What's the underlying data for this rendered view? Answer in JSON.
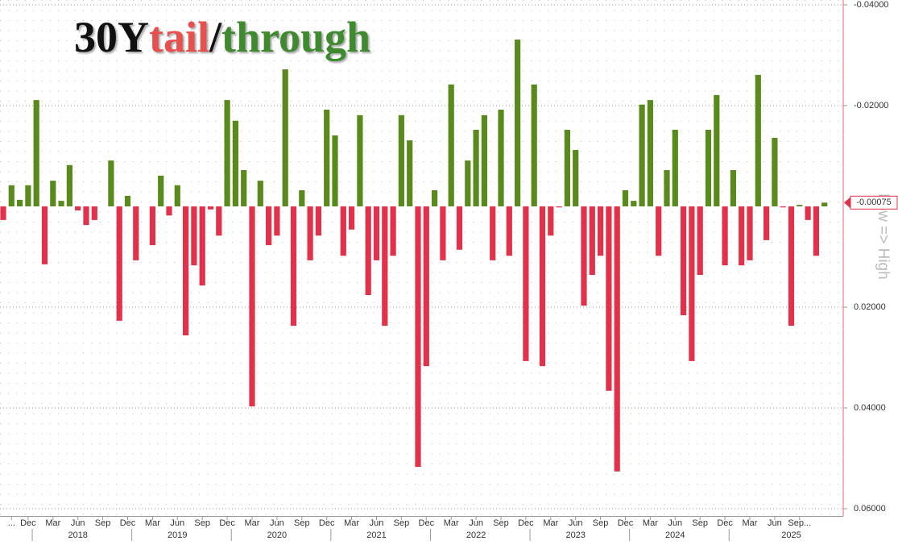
{
  "chart_data": {
    "type": "bar",
    "title_parts": [
      "30Y",
      "tail",
      "/",
      "through"
    ],
    "title_colors": [
      "#111111",
      "#e8504e",
      "#111111",
      "#3f8a2e"
    ],
    "y_label": "Low => High",
    "positive_color": "#e0324a",
    "negative_color": "#5a8a1e",
    "inverted": true,
    "grid": true,
    "ylim": [
      -0.04,
      0.06
    ],
    "yticks": [
      {
        "value": -0.04,
        "label": "-0.04000"
      },
      {
        "value": -0.02,
        "label": "-0.02000"
      },
      {
        "value": 0.02,
        "label": "0.02000"
      },
      {
        "value": 0.04,
        "label": "0.04000"
      },
      {
        "value": 0.06,
        "label": "0.06000"
      }
    ],
    "categories": [
      null,
      "...",
      null,
      "Dec",
      null,
      null,
      "Mar",
      null,
      null,
      "Jun",
      null,
      null,
      "Sep",
      null,
      null,
      "Dec",
      null,
      null,
      "Mar",
      null,
      null,
      "Jun",
      null,
      null,
      "Sep",
      null,
      null,
      "Dec",
      null,
      null,
      "Mar",
      null,
      null,
      "Jun",
      null,
      null,
      "Sep",
      null,
      null,
      "Dec",
      null,
      null,
      "Mar",
      null,
      null,
      "Jun",
      null,
      null,
      "Sep",
      null,
      null,
      "Dec",
      null,
      null,
      "Mar",
      null,
      null,
      "Jun",
      null,
      null,
      "Sep",
      null,
      null,
      "Dec",
      null,
      null,
      "Mar",
      null,
      null,
      "Jun",
      null,
      null,
      "Sep",
      null,
      null,
      "Dec",
      null,
      null,
      "Mar",
      null,
      null,
      "Jun",
      null,
      null,
      "Sep",
      null,
      null,
      "Dec",
      null,
      null,
      "Mar",
      null,
      null,
      "Jun",
      null,
      null,
      "Sep...",
      null,
      null,
      null
    ],
    "years": [
      null,
      null,
      null,
      null,
      null,
      null,
      null,
      null,
      null,
      "2018",
      null,
      null,
      null,
      null,
      null,
      null,
      null,
      null,
      null,
      null,
      null,
      "2019",
      null,
      null,
      null,
      null,
      null,
      null,
      null,
      null,
      null,
      null,
      null,
      "2020",
      null,
      null,
      null,
      null,
      null,
      null,
      null,
      null,
      null,
      null,
      null,
      "2021",
      null,
      null,
      null,
      null,
      null,
      null,
      null,
      null,
      null,
      null,
      null,
      "2022",
      null,
      null,
      null,
      null,
      null,
      null,
      null,
      null,
      null,
      null,
      null,
      "2023",
      null,
      null,
      null,
      null,
      null,
      null,
      null,
      null,
      null,
      null,
      null,
      "2024",
      null,
      null,
      null,
      null,
      null,
      null,
      null,
      null,
      null,
      null,
      null,
      null,
      null,
      "2025",
      null,
      null,
      null,
      null,
      null
    ],
    "values": [
      0.0027,
      -0.0042,
      -0.0013,
      -0.0042,
      -0.0211,
      0.0115,
      -0.0051,
      -0.0011,
      -0.0082,
      0.0008,
      0.0037,
      0.0027,
      0,
      -0.0091,
      0.0227,
      -0.0021,
      0.0107,
      0,
      0.0077,
      -0.0061,
      0.0018,
      -0.0042,
      0.0256,
      0.0117,
      0.0157,
      0.0006,
      0.0058,
      -0.0211,
      -0.017,
      -0.0072,
      0.0397,
      -0.0051,
      0.0077,
      0.0058,
      -0.0272,
      0.0237,
      -0.0032,
      0.0107,
      0.0058,
      -0.0192,
      -0.0141,
      0.0098,
      0.0046,
      -0.0181,
      0.0176,
      0.0107,
      0.0237,
      0.0098,
      -0.0181,
      -0.0131,
      0.0517,
      0.0317,
      -0.0032,
      0.0107,
      -0.0242,
      0.0086,
      -0.0091,
      -0.0152,
      -0.0181,
      0.0107,
      -0.0192,
      0.0098,
      -0.0331,
      0.0307,
      -0.0242,
      0.0317,
      0.0058,
      0.0002,
      -0.0152,
      -0.0112,
      0.0197,
      0.0136,
      0.0098,
      0.0366,
      0.0526,
      -0.0032,
      -0.0011,
      -0.0202,
      -0.0211,
      0.0098,
      -0.0072,
      -0.0152,
      0.0216,
      0.0307,
      0.0136,
      -0.0152,
      -0.0221,
      0.0117,
      -0.0072,
      0.0117,
      0.0107,
      -0.0261,
      0.0067,
      -0.0136,
      0.0002,
      0.0237,
      -0.0003,
      0.0027,
      0.0098,
      -0.00075
    ]
  }
}
